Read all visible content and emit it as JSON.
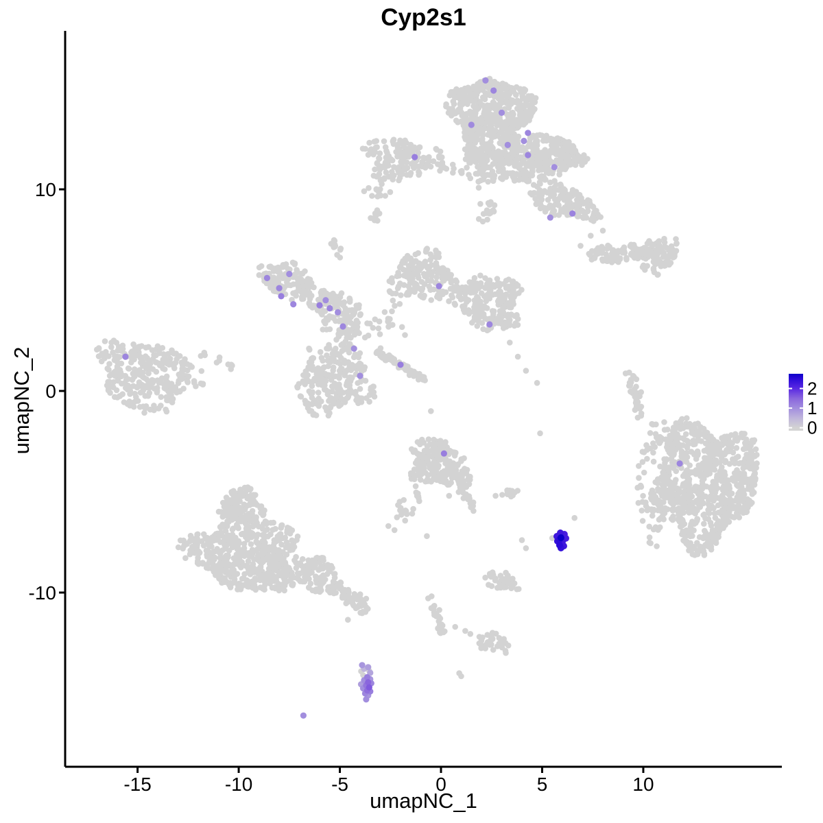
{
  "chart_data": {
    "type": "scatter",
    "title": "Cyp2s1",
    "xlabel": "umapNC_1",
    "ylabel": "umapNC_2",
    "xlim": [
      -18.58,
      16.85
    ],
    "ylim": [
      -18.64,
      17.86
    ],
    "x_ticks": [
      "-15",
      "-10",
      "-5",
      "0",
      "5",
      "10"
    ],
    "x_tick_values": [
      -15,
      -10,
      -5,
      0,
      5,
      10
    ],
    "y_ticks": [
      "-10",
      "0",
      "10"
    ],
    "y_tick_values": [
      -10,
      0,
      10
    ],
    "grid": false,
    "background": "#ffffff",
    "axis_color": "#000000",
    "point_color_low": "#d3d3d3",
    "point_color_high": "#0000ff",
    "color_stops": [
      [
        0,
        "#d3d3d3"
      ],
      [
        0.5,
        "#bfb5dc"
      ],
      [
        1,
        "#a28ede"
      ],
      [
        1.5,
        "#8a66dd"
      ],
      [
        2,
        "#5a2ae2"
      ],
      [
        2.5,
        "#2b0ad8"
      ],
      [
        2.9,
        "#0d00c8"
      ]
    ],
    "legend": {
      "ticks": [
        "2",
        "1",
        "0"
      ],
      "tick_values": [
        2,
        1,
        0
      ],
      "vmin": -0.15,
      "vmax": 2.75,
      "position": "right"
    },
    "clusters": [
      {
        "id": "top-core",
        "kind": "blob",
        "cx": 2.5,
        "cy": 13.5,
        "rx": 1.95,
        "ry": 2.15,
        "angle": 0,
        "n": 640,
        "p": 0.5
      },
      {
        "id": "top-east-lobe",
        "kind": "blob",
        "cx": 5.6,
        "cy": 11.7,
        "rx": 1.35,
        "ry": 0.95,
        "angle": -10,
        "n": 220,
        "p": 0.5
      },
      {
        "id": "top-south-arm",
        "kind": "blob",
        "cx": 6.0,
        "cy": 9.4,
        "rx": 1.75,
        "ry": 0.8,
        "angle": -18,
        "n": 150,
        "p": 0.5
      },
      {
        "id": "top-west-dangle",
        "kind": "blob",
        "cx": 1.95,
        "cy": 11.4,
        "rx": 0.75,
        "ry": 1.4,
        "angle": 8,
        "n": 70,
        "p": 0.7
      },
      {
        "id": "top-mid-bridge",
        "kind": "blob",
        "cx": 4.1,
        "cy": 11.2,
        "rx": 1.3,
        "ry": 1.0,
        "angle": 0,
        "n": 130,
        "p": 0.55
      },
      {
        "id": "top-south-bits",
        "kind": "blob",
        "cx": 2.3,
        "cy": 8.8,
        "rx": 0.55,
        "ry": 0.65,
        "angle": 0,
        "n": 16,
        "p": 0.8
      },
      {
        "id": "top-bridge-west",
        "kind": "line",
        "x1": -0.2,
        "y1": 11.1,
        "x2": 1.2,
        "y2": 11.0,
        "w": 0.3,
        "n": 14
      },
      {
        "id": "nw-cluster",
        "kind": "blob",
        "cx": -2.0,
        "cy": 11.5,
        "rx": 1.85,
        "ry": 1.05,
        "angle": -5,
        "n": 150,
        "p": 0.55
      },
      {
        "id": "nw-under-row",
        "kind": "blob",
        "cx": -3.1,
        "cy": 9.9,
        "rx": 0.75,
        "ry": 0.45,
        "angle": -20,
        "n": 12,
        "p": 0.8
      },
      {
        "id": "comma-blob",
        "kind": "blob",
        "cx": -3.2,
        "cy": 8.7,
        "rx": 0.4,
        "ry": 0.3,
        "angle": 30,
        "n": 10,
        "p": 0.6
      },
      {
        "id": "small-blob-west",
        "kind": "blob",
        "cx": -5.2,
        "cy": 7.0,
        "rx": 0.35,
        "ry": 0.6,
        "angle": 15,
        "n": 11,
        "p": 0.6
      },
      {
        "id": "midleft-upper",
        "kind": "blob",
        "cx": -7.6,
        "cy": 5.5,
        "rx": 1.3,
        "ry": 0.85,
        "angle": -15,
        "n": 115,
        "p": 0.55
      },
      {
        "id": "midleft-arm",
        "kind": "blob",
        "cx": -5.4,
        "cy": 4.3,
        "rx": 1.7,
        "ry": 0.7,
        "angle": -20,
        "n": 115,
        "p": 0.55
      },
      {
        "id": "midleft-scatter",
        "kind": "blob",
        "cx": -4.7,
        "cy": 3.0,
        "rx": 1.3,
        "ry": 0.9,
        "angle": 0,
        "n": 45,
        "p": 0.85
      },
      {
        "id": "midleft-connector",
        "kind": "blob",
        "cx": -4.5,
        "cy": 2.3,
        "rx": 0.55,
        "ry": 1.1,
        "angle": 10,
        "n": 22,
        "p": 0.8
      },
      {
        "id": "center-sparse",
        "kind": "blob",
        "cx": -2.4,
        "cy": 3.3,
        "rx": 1.0,
        "ry": 1.3,
        "angle": 0,
        "n": 20,
        "p": 0.9
      },
      {
        "id": "centermid-west",
        "kind": "blob",
        "cx": -0.9,
        "cy": 5.7,
        "rx": 1.55,
        "ry": 1.25,
        "angle": 0,
        "n": 175,
        "p": 0.55
      },
      {
        "id": "centermid-east",
        "kind": "blob",
        "cx": 2.3,
        "cy": 4.4,
        "rx": 1.75,
        "ry": 1.35,
        "angle": -15,
        "n": 230,
        "p": 0.5
      },
      {
        "id": "diag-streak",
        "kind": "line",
        "x1": -3.3,
        "y1": 2.05,
        "x2": -0.75,
        "y2": 0.5,
        "w": 0.22,
        "n": 60
      },
      {
        "id": "farleft",
        "kind": "blob",
        "cx": -14.5,
        "cy": 0.8,
        "rx": 2.45,
        "ry": 1.7,
        "angle": -12,
        "n": 300,
        "p": 0.5
      },
      {
        "id": "farleft-trail",
        "kind": "line",
        "x1": -11.9,
        "y1": 1.7,
        "x2": -10.3,
        "y2": 1.3,
        "w": 0.3,
        "n": 10
      },
      {
        "id": "centerleft-dense",
        "kind": "blob",
        "cx": -5.3,
        "cy": 0.5,
        "rx": 1.9,
        "ry": 1.65,
        "angle": 0,
        "n": 235,
        "p": 0.55
      },
      {
        "id": "right-band-west",
        "kind": "blob",
        "cx": 8.1,
        "cy": 6.75,
        "rx": 0.85,
        "ry": 0.4,
        "angle": -5,
        "n": 50,
        "p": 0.5
      },
      {
        "id": "right-band-east",
        "kind": "blob",
        "cx": 9.2,
        "cy": 6.8,
        "rx": 0.75,
        "ry": 0.4,
        "angle": 5,
        "n": 50,
        "p": 0.5
      },
      {
        "id": "right-band-blob",
        "kind": "blob",
        "cx": 10.8,
        "cy": 6.9,
        "rx": 1.0,
        "ry": 0.68,
        "angle": 0,
        "n": 90,
        "p": 0.5
      },
      {
        "id": "right-streaklet",
        "kind": "line",
        "x1": 9.9,
        "y1": 6.25,
        "x2": 10.75,
        "y2": 5.7,
        "w": 0.2,
        "n": 10
      },
      {
        "id": "right-sliver",
        "kind": "line",
        "x1": 9.35,
        "y1": 1.0,
        "x2": 9.85,
        "y2": -1.3,
        "w": 0.32,
        "n": 38
      },
      {
        "id": "midbottom",
        "kind": "blob",
        "cx": -0.3,
        "cy": -3.5,
        "rx": 1.3,
        "ry": 1.15,
        "angle": 0,
        "n": 175,
        "p": 0.55
      },
      {
        "id": "midbottom-east",
        "kind": "blob",
        "cx": 0.8,
        "cy": -4.3,
        "rx": 0.85,
        "ry": 0.6,
        "angle": -20,
        "n": 55,
        "p": 0.6
      },
      {
        "id": "midbottom-tail",
        "kind": "line",
        "x1": 0.9,
        "y1": -4.8,
        "x2": 1.7,
        "y2": -5.9,
        "w": 0.25,
        "n": 22
      },
      {
        "id": "midbottom-dangle",
        "kind": "line",
        "x1": -1.25,
        "y1": -4.7,
        "x2": -1.15,
        "y2": -5.5,
        "w": 0.15,
        "n": 7
      },
      {
        "id": "mid-scatter-south",
        "kind": "blob",
        "cx": -1.9,
        "cy": -6.0,
        "rx": 0.75,
        "ry": 0.65,
        "angle": 40,
        "n": 14,
        "p": 0.8
      },
      {
        "id": "bigright-core",
        "kind": "blob",
        "cx": 13.2,
        "cy": -4.5,
        "rx": 2.35,
        "ry": 3.0,
        "angle": 0,
        "n": 780,
        "p": 0.45
      },
      {
        "id": "bigright-west",
        "kind": "blob",
        "cx": 10.8,
        "cy": -5.4,
        "rx": 1.35,
        "ry": 2.2,
        "angle": 10,
        "n": 110,
        "p": 0.85
      },
      {
        "id": "bigright-nw",
        "kind": "blob",
        "cx": 11.3,
        "cy": -2.4,
        "rx": 1.3,
        "ry": 1.1,
        "angle": 0,
        "n": 55,
        "p": 0.85
      },
      {
        "id": "bottomleft-lobe",
        "kind": "blob",
        "cx": -9.9,
        "cy": -5.7,
        "rx": 1.05,
        "ry": 0.85,
        "angle": 0,
        "n": 130,
        "p": 0.55
      },
      {
        "id": "bottomleft-body",
        "kind": "blob",
        "cx": -9.7,
        "cy": -8.1,
        "rx": 2.7,
        "ry": 1.8,
        "angle": -8,
        "n": 560,
        "p": 0.5
      },
      {
        "id": "bottomleft-east",
        "kind": "blob",
        "cx": -6.3,
        "cy": -9.0,
        "rx": 1.0,
        "ry": 0.85,
        "angle": -25,
        "n": 110,
        "p": 0.55
      },
      {
        "id": "bottomleft-tail",
        "kind": "line",
        "x1": -5.5,
        "y1": -9.6,
        "x2": -3.6,
        "y2": -10.85,
        "w": 0.45,
        "n": 65
      },
      {
        "id": "bottom-streak",
        "kind": "line",
        "x1": -0.62,
        "y1": -10.1,
        "x2": 0.1,
        "y2": -12.1,
        "w": 0.25,
        "n": 28
      },
      {
        "id": "south-cluster-a",
        "kind": "blob",
        "cx": 3.0,
        "cy": -9.4,
        "rx": 0.9,
        "ry": 0.45,
        "angle": -15,
        "n": 40,
        "p": 0.55
      },
      {
        "id": "south-cluster-b",
        "kind": "blob",
        "cx": 2.6,
        "cy": -12.5,
        "rx": 0.8,
        "ry": 0.55,
        "angle": -20,
        "n": 36,
        "p": 0.55
      },
      {
        "id": "blob-pair",
        "kind": "blob",
        "cx": 3.6,
        "cy": -5.05,
        "rx": 0.55,
        "ry": 0.25,
        "angle": 10,
        "n": 13,
        "p": 0.6
      }
    ],
    "strays": [
      [
        3.8,
        1.7
      ],
      [
        4.2,
        1.0
      ],
      [
        4.75,
        0.4
      ],
      [
        3.4,
        2.4
      ],
      [
        6.9,
        7.2
      ],
      [
        7.4,
        7.7
      ],
      [
        8.0,
        7.95
      ],
      [
        -0.5,
        -1.0
      ],
      [
        -2.6,
        -6.7
      ],
      [
        -2.3,
        -6.9
      ],
      [
        -0.7,
        -7.2
      ],
      [
        0.4,
        -5.2
      ],
      [
        2.7,
        -5.2
      ],
      [
        4.0,
        -7.4
      ],
      [
        4.2,
        -7.8
      ],
      [
        5.5,
        -7.3
      ],
      [
        6.6,
        -6.3
      ],
      [
        4.9,
        -2.1
      ],
      [
        0.7,
        -11.7
      ],
      [
        1.2,
        -11.9
      ],
      [
        1.45,
        -12.05
      ],
      [
        0.9,
        -14.0
      ],
      [
        1.0,
        -14.15
      ],
      [
        -4.6,
        -11.35
      ]
    ],
    "expressing_cells": [
      [
        2.2,
        15.4,
        1.0
      ],
      [
        2.6,
        14.9,
        1.1
      ],
      [
        3.0,
        13.8,
        1.0
      ],
      [
        1.5,
        13.2,
        1.05
      ],
      [
        4.3,
        12.8,
        1.1
      ],
      [
        4.1,
        12.4,
        1.0
      ],
      [
        3.3,
        12.2,
        1.0
      ],
      [
        4.3,
        11.7,
        1.1
      ],
      [
        5.6,
        11.1,
        1.0
      ],
      [
        6.5,
        8.8,
        1.15
      ],
      [
        5.4,
        8.6,
        1.0
      ],
      [
        -1.3,
        11.6,
        1.2
      ],
      [
        -8.6,
        5.6,
        1.1
      ],
      [
        -7.5,
        5.8,
        1.0
      ],
      [
        -8.0,
        5.1,
        1.1
      ],
      [
        -7.9,
        4.7,
        1.2
      ],
      [
        -7.3,
        4.3,
        1.1
      ],
      [
        -5.7,
        4.5,
        1.0
      ],
      [
        -6.0,
        4.25,
        1.2
      ],
      [
        -5.5,
        4.1,
        1.1
      ],
      [
        -5.1,
        3.9,
        1.0
      ],
      [
        -4.85,
        3.2,
        1.1
      ],
      [
        -4.3,
        2.1,
        1.0
      ],
      [
        -0.1,
        5.2,
        1.1
      ],
      [
        2.4,
        3.3,
        1.1
      ],
      [
        -2.0,
        1.3,
        1.2
      ],
      [
        -15.6,
        1.7,
        1.1
      ],
      [
        -4.0,
        0.75,
        1.0
      ],
      [
        0.15,
        -3.1,
        1.2
      ],
      [
        11.8,
        -3.6,
        1.1
      ],
      [
        -6.8,
        -16.1,
        1.0
      ],
      [
        -3.9,
        -13.6,
        0.9
      ],
      [
        -3.6,
        -13.7,
        0.8
      ],
      [
        -3.8,
        -13.78,
        0.5
      ],
      [
        -3.95,
        -13.9,
        0.0
      ],
      [
        -3.55,
        -13.88,
        0.0
      ],
      [
        -3.5,
        -13.98,
        0.7
      ],
      [
        -3.85,
        -14.1,
        0.0
      ],
      [
        -3.65,
        -14.2,
        1.2
      ],
      [
        -3.5,
        -14.3,
        0.9
      ],
      [
        -3.8,
        -14.35,
        1.0
      ],
      [
        -3.6,
        -14.45,
        1.5
      ],
      [
        -3.45,
        -14.5,
        1.1
      ],
      [
        -3.95,
        -14.55,
        0.8
      ],
      [
        -3.7,
        -14.6,
        1.3
      ],
      [
        -3.55,
        -14.7,
        1.6
      ],
      [
        -3.85,
        -14.75,
        1.0
      ],
      [
        -3.65,
        -14.85,
        1.4
      ],
      [
        -3.5,
        -14.9,
        1.2
      ],
      [
        -3.75,
        -15.0,
        1.1
      ],
      [
        -3.6,
        -15.1,
        0.9
      ],
      [
        -3.7,
        -15.3,
        1.0
      ],
      [
        5.9,
        -7.04,
        2.3
      ],
      [
        6.1,
        -7.11,
        2.2
      ],
      [
        5.73,
        -7.21,
        2.3
      ],
      [
        6.0,
        -7.25,
        2.2
      ],
      [
        5.93,
        -7.28,
        2.9
      ],
      [
        6.17,
        -7.31,
        2.2
      ],
      [
        5.85,
        -7.38,
        2.5
      ],
      [
        5.76,
        -7.45,
        2.4
      ],
      [
        6.0,
        -7.48,
        2.3
      ],
      [
        5.86,
        -7.65,
        2.5
      ],
      [
        6.07,
        -7.69,
        2.3
      ],
      [
        5.93,
        -7.79,
        2.4
      ]
    ]
  }
}
